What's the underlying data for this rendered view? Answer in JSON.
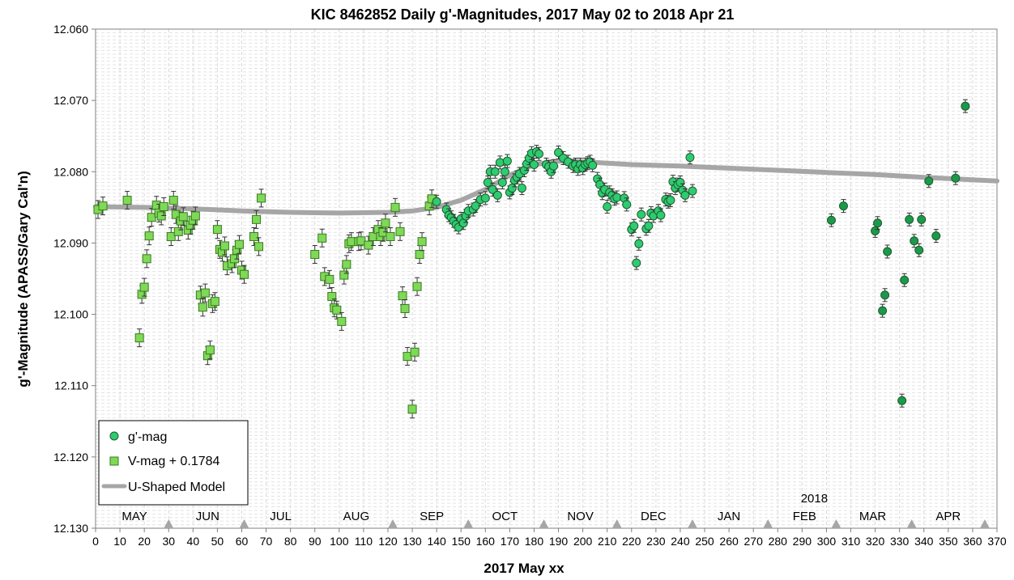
{
  "chart_data": {
    "type": "scatter",
    "title": "KIC 8462852 Daily g'-Magnitudes,  2017 May 02 to 2018  Apr 21",
    "xlabel": "2017 May xx",
    "ylabel": "g'-Magnitude  (APASS/Gary Cal'n)",
    "xlim": [
      0,
      370
    ],
    "ylim": [
      12.06,
      12.13
    ],
    "y_inverted": true,
    "x_ticks": [
      "0",
      "10",
      "20",
      "30",
      "40",
      "50",
      "60",
      "70",
      "80",
      "90",
      "100",
      "110",
      "120",
      "130",
      "140",
      "150",
      "160",
      "170",
      "180",
      "190",
      "200",
      "210",
      "220",
      "230",
      "240",
      "250",
      "260",
      "270",
      "280",
      "290",
      "300",
      "310",
      "320",
      "330",
      "340",
      "350",
      "360",
      "370"
    ],
    "y_ticks": [
      "12.060",
      "12.070",
      "12.080",
      "12.090",
      "12.100",
      "12.110",
      "12.120",
      "12.130"
    ],
    "grid": true,
    "legend_position": "bottom-left",
    "year_annotation": {
      "text": "2018",
      "x": 295
    },
    "months": [
      {
        "label": "MAY",
        "x": 16
      },
      {
        "label": "JUN",
        "x": 46
      },
      {
        "label": "JUL",
        "x": 76
      },
      {
        "label": "AUG",
        "x": 107
      },
      {
        "label": "SEP",
        "x": 138
      },
      {
        "label": "OCT",
        "x": 168
      },
      {
        "label": "NOV",
        "x": 199
      },
      {
        "label": "DEC",
        "x": 229
      },
      {
        "label": "JAN",
        "x": 260
      },
      {
        "label": "FEB",
        "x": 291
      },
      {
        "label": "MAR",
        "x": 319
      },
      {
        "label": "APR",
        "x": 350
      }
    ],
    "month_markers": [
      30,
      61,
      122,
      153,
      184,
      214,
      245,
      276,
      304,
      335,
      365
    ],
    "series": [
      {
        "name": "g'-mag",
        "marker": "circle",
        "color": "#2ecc71",
        "color_late": "#1a9a4a",
        "points": [
          [
            140,
            12.0842
          ],
          [
            144,
            12.0853
          ],
          [
            145,
            12.0861
          ],
          [
            146,
            12.0864
          ],
          [
            147,
            12.0869
          ],
          [
            148,
            12.0874
          ],
          [
            149,
            12.0878
          ],
          [
            150,
            12.0866
          ],
          [
            151,
            12.0872
          ],
          [
            152,
            12.0862
          ],
          [
            153,
            12.0855
          ],
          [
            155,
            12.0853
          ],
          [
            156,
            12.0848
          ],
          [
            158,
            12.0839
          ],
          [
            160,
            12.0837
          ],
          [
            161,
            12.0815
          ],
          [
            162,
            12.08
          ],
          [
            163,
            12.0825
          ],
          [
            164,
            12.08
          ],
          [
            165,
            12.0833
          ],
          [
            166,
            12.0787
          ],
          [
            167,
            12.0815
          ],
          [
            168,
            12.08
          ],
          [
            169,
            12.0785
          ],
          [
            170,
            12.0829
          ],
          [
            171,
            12.0823
          ],
          [
            172,
            12.0812
          ],
          [
            173,
            12.0808
          ],
          [
            174,
            12.0803
          ],
          [
            175,
            12.0823
          ],
          [
            176,
            12.0798
          ],
          [
            177,
            12.0789
          ],
          [
            178,
            12.0781
          ],
          [
            179,
            12.0774
          ],
          [
            180,
            12.079
          ],
          [
            181,
            12.0772
          ],
          [
            182,
            12.0775
          ],
          [
            185,
            12.079
          ],
          [
            186,
            12.0793
          ],
          [
            187,
            12.08
          ],
          [
            188,
            12.0792
          ],
          [
            190,
            12.0773
          ],
          [
            192,
            12.0781
          ],
          [
            194,
            12.0786
          ],
          [
            196,
            12.0792
          ],
          [
            197,
            12.079
          ],
          [
            198,
            12.0796
          ],
          [
            199,
            12.079
          ],
          [
            200,
            12.0795
          ],
          [
            201,
            12.079
          ],
          [
            202,
            12.0788
          ],
          [
            203,
            12.0786
          ],
          [
            204,
            12.0791
          ],
          [
            206,
            12.081
          ],
          [
            207,
            12.0818
          ],
          [
            208,
            12.083
          ],
          [
            209,
            12.0825
          ],
          [
            210,
            12.0849
          ],
          [
            211,
            12.0829
          ],
          [
            212,
            12.0833
          ],
          [
            213,
            12.0838
          ],
          [
            214,
            12.0836
          ],
          [
            217,
            12.0837
          ],
          [
            218,
            12.0846
          ],
          [
            220,
            12.0881
          ],
          [
            221,
            12.0876
          ],
          [
            222,
            12.0928
          ],
          [
            223,
            12.0901
          ],
          [
            224,
            12.086
          ],
          [
            226,
            12.088
          ],
          [
            227,
            12.0876
          ],
          [
            228,
            12.0858
          ],
          [
            229,
            12.0862
          ],
          [
            231,
            12.0855
          ],
          [
            232,
            12.0861
          ],
          [
            234,
            12.0839
          ],
          [
            235,
            12.0842
          ],
          [
            236,
            12.084
          ],
          [
            237,
            12.0814
          ],
          [
            238,
            12.0823
          ],
          [
            239,
            12.0818
          ],
          [
            240,
            12.0815
          ],
          [
            241,
            12.0826
          ],
          [
            242,
            12.0833
          ],
          [
            245,
            12.0827
          ],
          [
            244,
            12.078
          ],
          [
            302,
            12.0868
          ],
          [
            307,
            12.0848
          ],
          [
            320,
            12.0883
          ],
          [
            321,
            12.0872
          ],
          [
            323,
            12.0995
          ],
          [
            324,
            12.0973
          ],
          [
            325,
            12.0912
          ],
          [
            331,
            12.1121
          ],
          [
            332,
            12.0952
          ],
          [
            334,
            12.0867
          ],
          [
            336,
            12.0897
          ],
          [
            338,
            12.091
          ],
          [
            339,
            12.0867
          ],
          [
            342,
            12.0813
          ],
          [
            345,
            12.089
          ],
          [
            353,
            12.0809
          ],
          [
            357,
            12.0708
          ]
        ]
      },
      {
        "name": "V-mag + 0.1784",
        "marker": "square",
        "color": "#7ed957",
        "points": [
          [
            1,
            12.0853
          ],
          [
            3,
            12.0848
          ],
          [
            13,
            12.084
          ],
          [
            18,
            12.1033
          ],
          [
            19,
            12.0972
          ],
          [
            20,
            12.0962
          ],
          [
            21,
            12.0922
          ],
          [
            22,
            12.089
          ],
          [
            23,
            12.0864
          ],
          [
            25,
            12.0847
          ],
          [
            26,
            12.0858
          ],
          [
            27,
            12.0862
          ],
          [
            28,
            12.0849
          ],
          [
            31,
            12.0891
          ],
          [
            32,
            12.084
          ],
          [
            33,
            12.086
          ],
          [
            34,
            12.0884
          ],
          [
            35,
            12.0869
          ],
          [
            36,
            12.0863
          ],
          [
            38,
            12.0882
          ],
          [
            39,
            12.0875
          ],
          [
            40,
            12.0868
          ],
          [
            41,
            12.0862
          ],
          [
            43,
            12.0973
          ],
          [
            44,
            12.099
          ],
          [
            45,
            12.097
          ],
          [
            46,
            12.1058
          ],
          [
            47,
            12.105
          ],
          [
            48,
            12.0985
          ],
          [
            49,
            12.0982
          ],
          [
            50,
            12.0881
          ],
          [
            51,
            12.0909
          ],
          [
            52,
            12.0913
          ],
          [
            53,
            12.0904
          ],
          [
            54,
            12.0932
          ],
          [
            56,
            12.0929
          ],
          [
            57,
            12.0922
          ],
          [
            58,
            12.091
          ],
          [
            59,
            12.0902
          ],
          [
            60,
            12.0938
          ],
          [
            61,
            12.0944
          ],
          [
            65,
            12.0891
          ],
          [
            66,
            12.0867
          ],
          [
            67,
            12.0905
          ],
          [
            68,
            12.0837
          ],
          [
            90,
            12.0916
          ],
          [
            93,
            12.0893
          ],
          [
            94,
            12.0947
          ],
          [
            96,
            12.0951
          ],
          [
            97,
            12.0975
          ],
          [
            98,
            12.0991
          ],
          [
            99,
            12.0994
          ],
          [
            101,
            12.101
          ],
          [
            102,
            12.0945
          ],
          [
            103,
            12.093
          ],
          [
            104,
            12.0901
          ],
          [
            105,
            12.0898
          ],
          [
            108,
            12.0898
          ],
          [
            109,
            12.0897
          ],
          [
            112,
            12.0903
          ],
          [
            114,
            12.0891
          ],
          [
            116,
            12.0881
          ],
          [
            117,
            12.0891
          ],
          [
            118,
            12.0885
          ],
          [
            119,
            12.0872
          ],
          [
            121,
            12.0891
          ],
          [
            123,
            12.085
          ],
          [
            125,
            12.0884
          ],
          [
            126,
            12.0974
          ],
          [
            127,
            12.0992
          ],
          [
            128,
            12.1059
          ],
          [
            131,
            12.1053
          ],
          [
            132,
            12.0961
          ],
          [
            133,
            12.0916
          ],
          [
            134,
            12.0898
          ],
          [
            130,
            12.1133
          ],
          [
            137,
            12.0848
          ],
          [
            138,
            12.0838
          ]
        ]
      },
      {
        "name": "U-Shaped Model",
        "marker": "line",
        "color": "#a6a6a6",
        "points": [
          [
            0,
            12.0849
          ],
          [
            20,
            12.085
          ],
          [
            40,
            12.0852
          ],
          [
            60,
            12.0855
          ],
          [
            80,
            12.0857
          ],
          [
            100,
            12.0858
          ],
          [
            120,
            12.0857
          ],
          [
            130,
            12.0855
          ],
          [
            140,
            12.085
          ],
          [
            150,
            12.084
          ],
          [
            160,
            12.0825
          ],
          [
            170,
            12.0805
          ],
          [
            180,
            12.079
          ],
          [
            190,
            12.0785
          ],
          [
            200,
            12.0786
          ],
          [
            210,
            12.0788
          ],
          [
            220,
            12.079
          ],
          [
            240,
            12.0792
          ],
          [
            260,
            12.0795
          ],
          [
            280,
            12.0798
          ],
          [
            300,
            12.0801
          ],
          [
            320,
            12.0804
          ],
          [
            340,
            12.0808
          ],
          [
            370,
            12.0813
          ]
        ]
      }
    ]
  }
}
